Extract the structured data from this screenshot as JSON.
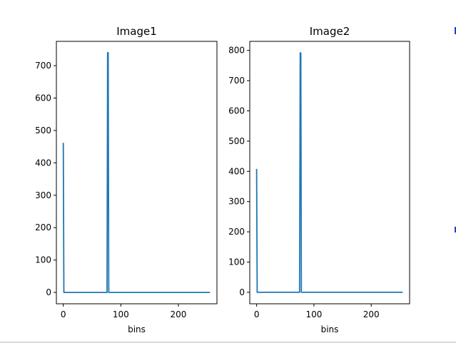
{
  "chart_data": [
    {
      "type": "line",
      "title": "Image1",
      "xlabel": "bins",
      "ylabel": "",
      "xlim": [
        -12,
        267
      ],
      "ylim": [
        -35,
        775
      ],
      "xticks": [
        0,
        100,
        200
      ],
      "yticks": [
        0,
        100,
        200,
        300,
        400,
        500,
        600,
        700
      ],
      "grid": false,
      "color": "#1f77b4",
      "series": [
        {
          "x": [
            0,
            1,
            2,
            76,
            77,
            78,
            79,
            80,
            255
          ],
          "y": [
            462,
            0,
            0,
            0,
            740,
            740,
            0,
            0,
            0
          ]
        }
      ]
    },
    {
      "type": "line",
      "title": "Image2",
      "xlabel": "bins",
      "ylabel": "",
      "xlim": [
        -12,
        267
      ],
      "ylim": [
        -38,
        830
      ],
      "xticks": [
        0,
        100,
        200
      ],
      "yticks": [
        0,
        100,
        200,
        300,
        400,
        500,
        600,
        700,
        800
      ],
      "grid": false,
      "color": "#1f77b4",
      "series": [
        {
          "x": [
            0,
            1,
            2,
            75,
            76,
            77,
            78,
            255
          ],
          "y": [
            408,
            0,
            0,
            0,
            792,
            792,
            0,
            0
          ]
        }
      ]
    }
  ]
}
